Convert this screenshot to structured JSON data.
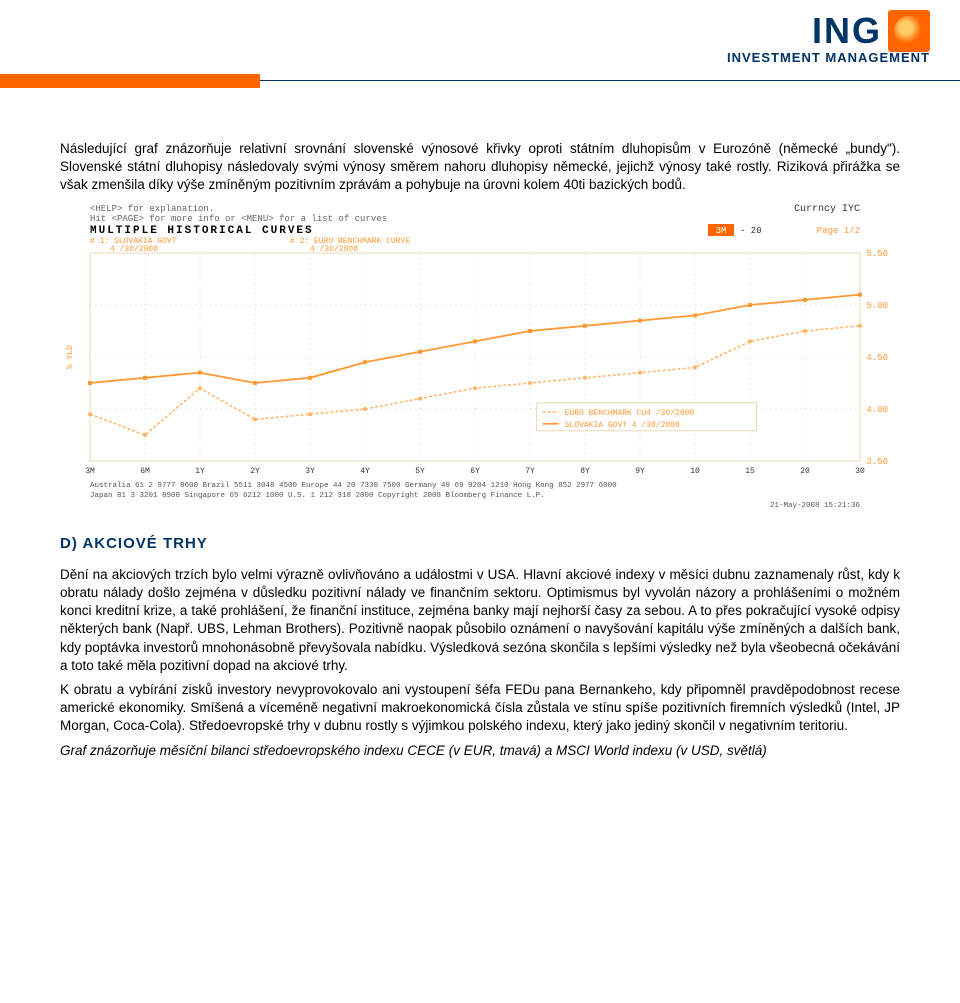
{
  "header": {
    "logo_text": "ING",
    "tagline": "INVESTMENT MANAGEMENT"
  },
  "intro_para": "Následující graf znázorňuje relativní srovnání slovenské výnosové křivky oproti státním dluhopisům v Eurozóně (německé „bundy\"). Slovenské státní dluhopisy následovaly svými výnosy směrem nahoru dluhopisy německé, jejichž výnosy také rostly. Riziková přirážka se však zmenšila díky výše zmíněným pozitivním zprávám a pohybuje na úrovni kolem 40ti bazických bodů.",
  "chart": {
    "help_line": "<HELP> for explanation.",
    "currency": "Currncy IYC",
    "hint_line": "Hit <PAGE> for more info or <MENU> for a list of curves",
    "title": "MULTIPLE   HISTORICAL   CURVES",
    "range_label": "3M",
    "range_val": "- 20",
    "page_label": "Page 1/2",
    "series1_label": "# 1: SLOVAKIA GOVT",
    "series1_date": "4 /30/2008",
    "series2_label": "# 2: EURO BENCHMARK CURVE",
    "series2_date": "4 /30/2008",
    "legend1": "EURO BENCHMARK CU4 /30/2008",
    "legend2": "SLOVAKIA GOVT    4 /30/2008",
    "y_min": 3.5,
    "y_max": 5.5,
    "y_ticks": [
      "5.50",
      "5.00",
      "4.50",
      "4.00",
      "3.50"
    ],
    "x_ticks": [
      "3M",
      "6M",
      "1Y",
      "2Y",
      "3Y",
      "4Y",
      "5Y",
      "6Y",
      "7Y",
      "8Y",
      "9Y",
      "10",
      "15",
      "20",
      "30"
    ],
    "series_slovakia": [
      4.25,
      4.3,
      4.35,
      4.25,
      4.3,
      4.45,
      4.55,
      4.65,
      4.75,
      4.8,
      4.85,
      4.9,
      5.0,
      5.05,
      5.1
    ],
    "series_euro": [
      3.95,
      3.75,
      4.2,
      3.9,
      3.95,
      4.0,
      4.1,
      4.2,
      4.25,
      4.3,
      4.35,
      4.4,
      4.65,
      4.75,
      4.8
    ],
    "grid_color": "#e8d8b8",
    "line_color_slovakia": "#ff9933",
    "line_color_euro": "#ffb366",
    "background_color": "#ffffff",
    "footer1": "Australia 61 2 9777 8600 Brazil 5511 3048 4500 Europe 44 20 7330 7500 Germany 49 69 9204 1210 Hong Kong 852 2977 6000",
    "footer2": "Japan 81 3 3201 8900      Singapore 65 6212 1000        U.S. 1 212 318 2000      Copyright 2008 Bloomberg Finance L.P.",
    "footer3": "21-May-2008 15:21:36"
  },
  "section_d": {
    "heading": "D) AKCIOVÉ TRHY",
    "para1": "Dění na akciových trzích bylo velmi výrazně ovlivňováno  a událostmi v USA. Hlavní akciové indexy v měsíci dubnu zaznamenaly růst, kdy k obratu nálady došlo zejména v důsledku pozitivní nálady ve finančním sektoru. Optimismus byl vyvolán názory a prohlášeními o možném konci kreditní krize, a také prohlášení, že finanční instituce, zejména banky mají nejhorší časy za sebou. A to přes pokračující vysoké odpisy některých bank (Např. UBS, Lehman Brothers). Pozitivně naopak působilo oznámení o navyšování kapitálu výše zmíněných a dalších bank, kdy poptávka investorů mnohonásobně převyšovala nabídku. Výsledková sezóna skončila s lepšími výsledky než byla všeobecná očekávání a toto také měla pozitivní dopad na akciové trhy.",
    "para2": "K obratu a vybírání zisků investory nevyprovokovalo ani vystoupení šéfa FEDu pana Bernankeho, kdy připomněl pravděpodobnost recese americké ekonomiky. Smíšená a víceméně negativní makroekonomická čísla zůstala ve stínu spíše pozitivních firemních výsledků (Intel, JP Morgan, Coca-Cola). Středoevropské trhy v dubnu rostly s výjimkou polského indexu, který jako jediný skončil v negativním teritoriu.",
    "para3_italic": "Graf znázorňuje měsíční bilanci středoevropského indexu CECE (v EUR, tmavá) a MSCI World indexu (v USD, světlá)"
  }
}
